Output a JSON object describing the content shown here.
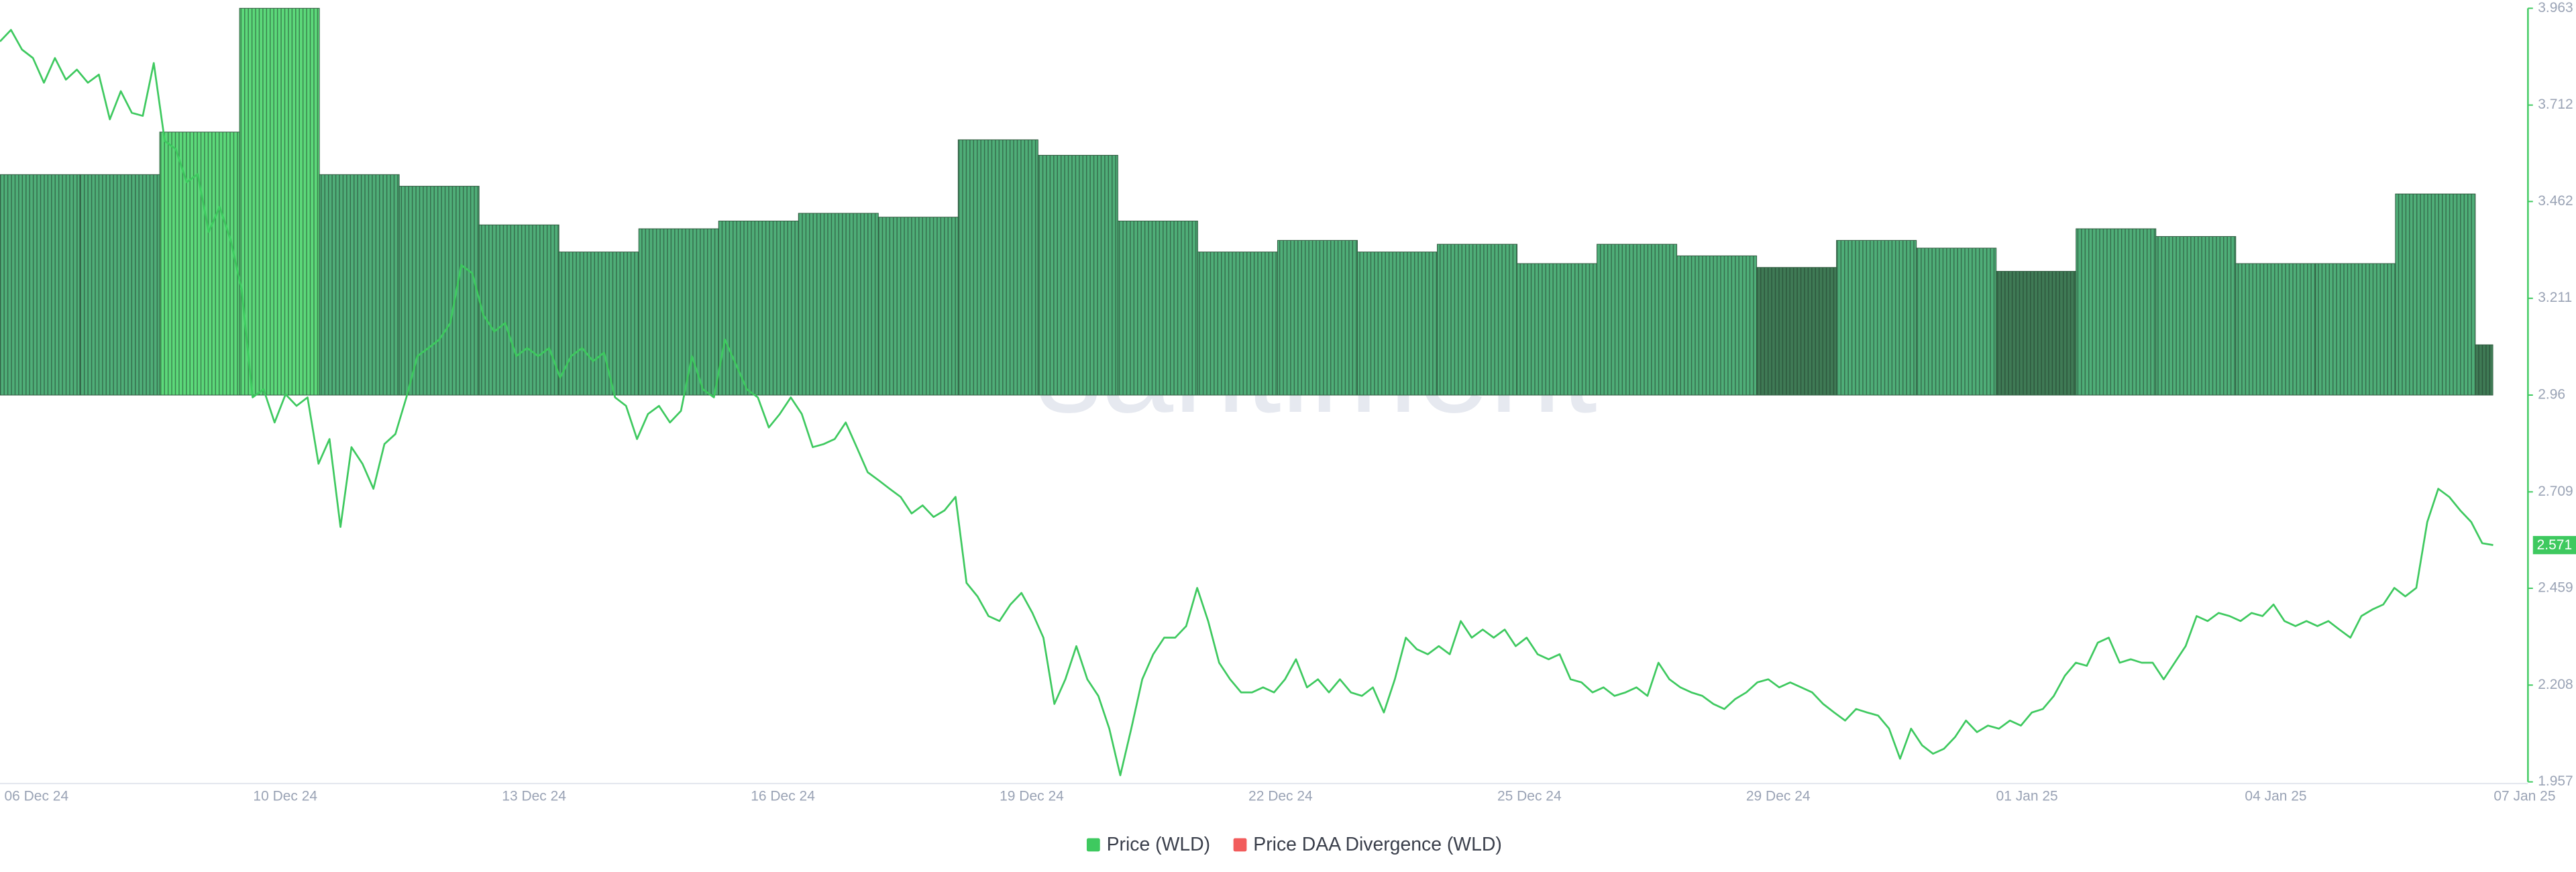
{
  "chart_data": {
    "type": "combo",
    "watermark": "santiment",
    "xticks": [
      "06 Dec 24",
      "10 Dec 24",
      "13 Dec 24",
      "16 Dec 24",
      "19 Dec 24",
      "22 Dec 24",
      "25 Dec 24",
      "29 Dec 24",
      "01 Jan 25",
      "04 Jan 25",
      "07 Jan 25"
    ],
    "ylim": [
      1.957,
      3.963
    ],
    "yticks": [
      1.957,
      2.208,
      2.459,
      2.709,
      2.96,
      3.211,
      3.462,
      3.712,
      3.963
    ],
    "y2lim": [
      -100,
      100
    ],
    "series": [
      {
        "name": "Price (WLD)",
        "type": "line",
        "color": "#3ec95f",
        "values": [
          3.877,
          3.907,
          3.856,
          3.834,
          3.77,
          3.834,
          3.778,
          3.804,
          3.77,
          3.791,
          3.675,
          3.748,
          3.692,
          3.684,
          3.821,
          3.619,
          3.598,
          3.512,
          3.533,
          3.383,
          3.448,
          3.362,
          3.233,
          2.954,
          2.975,
          2.889,
          2.962,
          2.932,
          2.954,
          2.782,
          2.846,
          2.618,
          2.825,
          2.782,
          2.717,
          2.833,
          2.859,
          2.954,
          3.061,
          3.082,
          3.104,
          3.147,
          3.297,
          3.276,
          3.168,
          3.125,
          3.147,
          3.061,
          3.082,
          3.061,
          3.082,
          3.005,
          3.061,
          3.082,
          3.048,
          3.07,
          2.954,
          2.932,
          2.846,
          2.911,
          2.932,
          2.889,
          2.919,
          3.061,
          2.975,
          2.954,
          3.104,
          3.04,
          2.975,
          2.954,
          2.876,
          2.911,
          2.954,
          2.911,
          2.825,
          2.833,
          2.846,
          2.889,
          2.825,
          2.76,
          2.739,
          2.717,
          2.696,
          2.653,
          2.674,
          2.644,
          2.661,
          2.696,
          2.473,
          2.438,
          2.387,
          2.374,
          2.417,
          2.447,
          2.395,
          2.331,
          2.159,
          2.223,
          2.309,
          2.223,
          2.18,
          2.095,
          1.974,
          2.095,
          2.223,
          2.288,
          2.331,
          2.331,
          2.361,
          2.46,
          2.374,
          2.266,
          2.223,
          2.189,
          2.189,
          2.202,
          2.189,
          2.223,
          2.275,
          2.202,
          2.223,
          2.189,
          2.223,
          2.189,
          2.18,
          2.202,
          2.137,
          2.223,
          2.331,
          2.301,
          2.288,
          2.309,
          2.288,
          2.374,
          2.331,
          2.352,
          2.331,
          2.352,
          2.309,
          2.331,
          2.288,
          2.275,
          2.288,
          2.223,
          2.215,
          2.189,
          2.202,
          2.18,
          2.189,
          2.202,
          2.18,
          2.266,
          2.223,
          2.202,
          2.189,
          2.18,
          2.159,
          2.146,
          2.172,
          2.189,
          2.215,
          2.223,
          2.202,
          2.215,
          2.202,
          2.189,
          2.159,
          2.137,
          2.116,
          2.146,
          2.137,
          2.129,
          2.095,
          2.017,
          2.095,
          2.052,
          2.03,
          2.043,
          2.073,
          2.116,
          2.086,
          2.103,
          2.095,
          2.116,
          2.103,
          2.137,
          2.146,
          2.18,
          2.232,
          2.266,
          2.258,
          2.318,
          2.331,
          2.266,
          2.275,
          2.266,
          2.266,
          2.223,
          2.266,
          2.309,
          2.387,
          2.374,
          2.395,
          2.387,
          2.374,
          2.395,
          2.387,
          2.417,
          2.374,
          2.361,
          2.374,
          2.361,
          2.374,
          2.352,
          2.331,
          2.387,
          2.404,
          2.417,
          2.46,
          2.438,
          2.46,
          2.631,
          2.717,
          2.696,
          2.661,
          2.631,
          2.576,
          2.571
        ]
      },
      {
        "name": "Price DAA Divergence (WLD)",
        "type": "bar",
        "axis": "y2",
        "color": "#f25c5c",
        "values": [
          57,
          57,
          68,
          100,
          57,
          54,
          44,
          37,
          43,
          45,
          47,
          46,
          66,
          62,
          45,
          37,
          40,
          37,
          39,
          34,
          39,
          36,
          33,
          40,
          38,
          32,
          43,
          41,
          34,
          34,
          52,
          13
        ],
        "colors": [
          "#4fae78",
          "#4fae78",
          "#5cd97a",
          "#5cd97a",
          "#4fae78",
          "#4fae78",
          "#4fae78",
          "#4fae78",
          "#4fae78",
          "#4fae78",
          "#4fae78",
          "#4fae78",
          "#4fae78",
          "#4fae78",
          "#4fae78",
          "#4fae78",
          "#4fae78",
          "#4fae78",
          "#4fae78",
          "#4fae78",
          "#4fae78",
          "#4fae78",
          "#3f7a55",
          "#4fae78",
          "#4fae78",
          "#3f7a55",
          "#4fae78",
          "#4fae78",
          "#4fae78",
          "#4fae78",
          "#4fae78",
          "#3f7a55"
        ]
      }
    ]
  }
}
